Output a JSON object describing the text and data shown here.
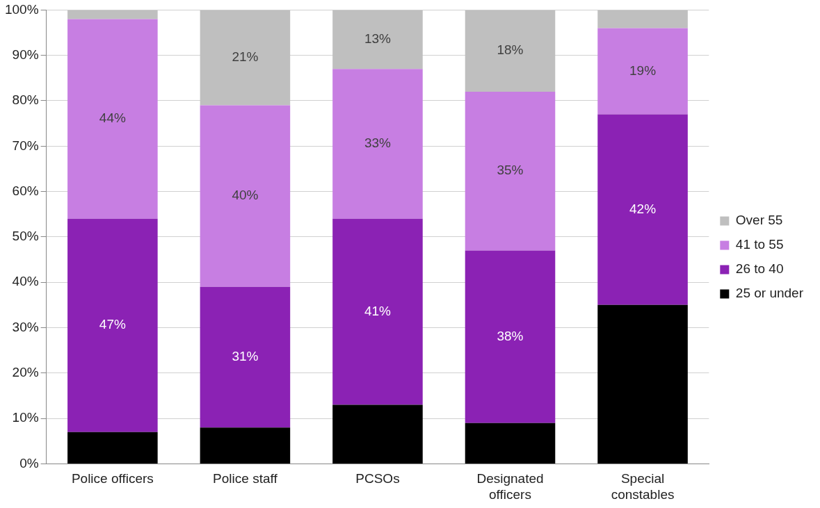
{
  "chart_data": {
    "type": "bar",
    "stacked": true,
    "categories": [
      "Police officers",
      "Police staff",
      "PCSOs",
      "Designated officers",
      "Special constables"
    ],
    "series": [
      {
        "name": "25 or under",
        "color": "#000000",
        "values": [
          7,
          8,
          13,
          9,
          35
        ],
        "value_labels": [
          null,
          null,
          null,
          null,
          null
        ]
      },
      {
        "name": "26 to 40",
        "color": "#8b22b4",
        "values": [
          47,
          31,
          41,
          38,
          42
        ],
        "value_labels": [
          "47%",
          "31%",
          "41%",
          "38%",
          "42%"
        ]
      },
      {
        "name": "41 to 55",
        "color": "#c77ee2",
        "values": [
          44,
          40,
          33,
          35,
          19
        ],
        "value_labels": [
          "44%",
          "40%",
          "33%",
          "35%",
          "19%"
        ]
      },
      {
        "name": "Over 55",
        "color": "#bfbfbf",
        "values": [
          2,
          21,
          13,
          18,
          4
        ],
        "value_labels": [
          null,
          "21%",
          "13%",
          "18%",
          null
        ]
      }
    ],
    "ylim": [
      0,
      100
    ],
    "yticks": [
      {
        "value": 0,
        "label": "0%"
      },
      {
        "value": 10,
        "label": "10%"
      },
      {
        "value": 20,
        "label": "20%"
      },
      {
        "value": 30,
        "label": "30%"
      },
      {
        "value": 40,
        "label": "40%"
      },
      {
        "value": 50,
        "label": "50%"
      },
      {
        "value": 60,
        "label": "60%"
      },
      {
        "value": 70,
        "label": "70%"
      },
      {
        "value": 80,
        "label": "80%"
      },
      {
        "value": 90,
        "label": "90%"
      },
      {
        "value": 100,
        "label": "100%"
      }
    ],
    "grid": "y",
    "legend": "right"
  }
}
